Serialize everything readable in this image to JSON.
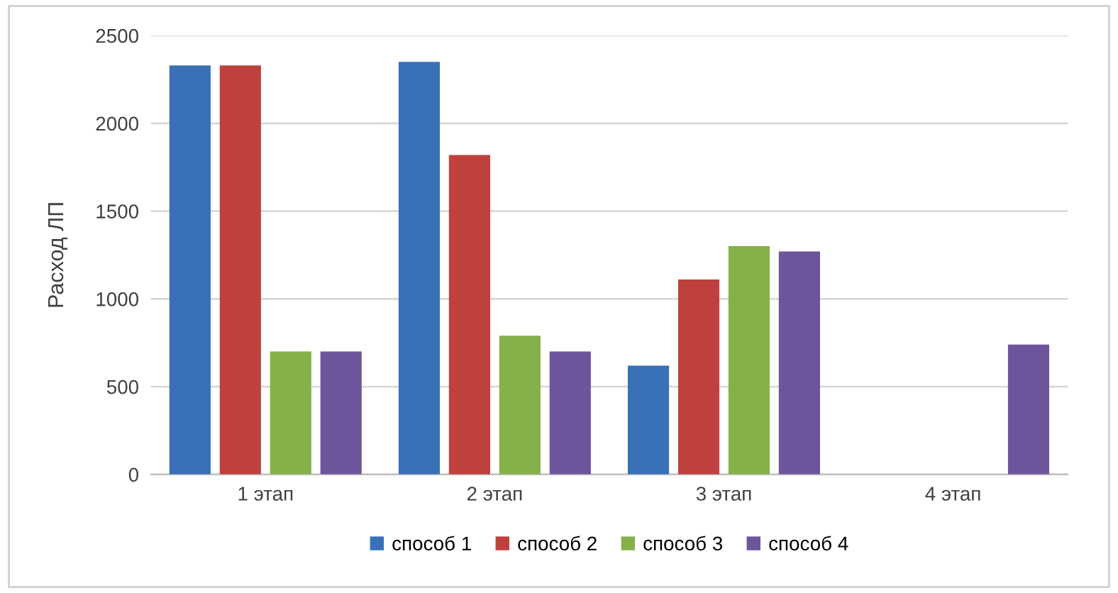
{
  "chart_data": {
    "type": "bar",
    "ylabel": "Расход ЛП",
    "categories": [
      "1 этап",
      "2 этап",
      "3 этап",
      "4 этап"
    ],
    "series": [
      {
        "name": "способ 1",
        "color": "#3a70b8",
        "values": [
          2330,
          2350,
          620,
          null
        ]
      },
      {
        "name": "способ 2",
        "color": "#be413d",
        "values": [
          2330,
          1820,
          1110,
          null
        ]
      },
      {
        "name": "способ 3",
        "color": "#86b04a",
        "values": [
          700,
          790,
          1300,
          null
        ]
      },
      {
        "name": "способ 4",
        "color": "#6e559b",
        "values": [
          700,
          700,
          1270,
          740
        ]
      }
    ],
    "ylim": [
      0,
      2500
    ],
    "yticks": [
      0,
      500,
      1000,
      1500,
      2000,
      2500
    ],
    "grid": "y",
    "legend": "bottom"
  }
}
